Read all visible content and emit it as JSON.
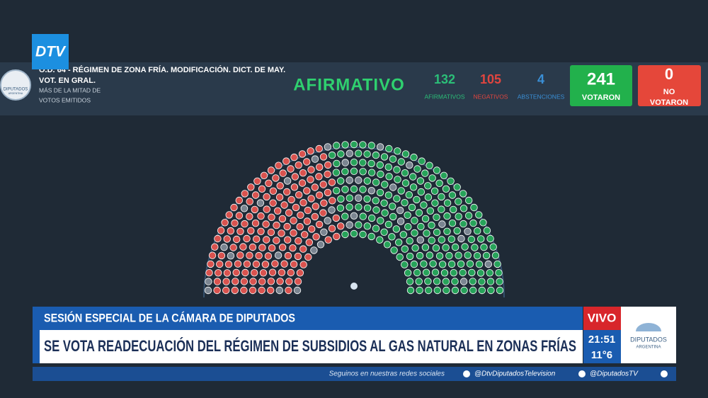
{
  "logo": "DTV",
  "vote_header": {
    "badge": "DIPUTADOS",
    "badge_sub": "ARGENTINA",
    "title_line1": "O.D. 64 - RÉGIMEN DE ZONA FRÍA. MODIFICACIÓN. DICT. DE MAY.",
    "title_line2": "VOT. EN GRAL.",
    "majority_line1": "MÁS DE LA MITAD DE",
    "majority_line2": "VOTOS EMITIDOS",
    "result": "AFIRMATIVO",
    "counts": [
      {
        "value": 132,
        "label": "AFIRMATIVOS"
      },
      {
        "value": 105,
        "label": "NEGATIVOS"
      },
      {
        "value": 4,
        "label": "ABSTENCIONES"
      }
    ],
    "voted": {
      "value": 241,
      "label": "VOTARON"
    },
    "not_voted": {
      "value": 0,
      "label_line1": "NO",
      "label_line2": "VOTARON"
    }
  },
  "lower_third": {
    "session": "SESIÓN ESPECIAL DE LA CÁMARA DE DIPUTADOS",
    "headline": "SE VOTA READECUACIÓN DEL RÉGIMEN DE SUBSIDIOS AL GAS NATURAL EN ZONAS FRÍAS",
    "live": "VIVO",
    "time": "21:51",
    "temperature": "11°6",
    "channel_line1": "DIPUTADOS",
    "channel_line2": "ARGENTINA"
  },
  "social": {
    "prompt": "Seguinos en nuestras redes sociales",
    "facebook": "@DtvDiputadosTelevision",
    "x": "@DiputadosTV"
  }
}
